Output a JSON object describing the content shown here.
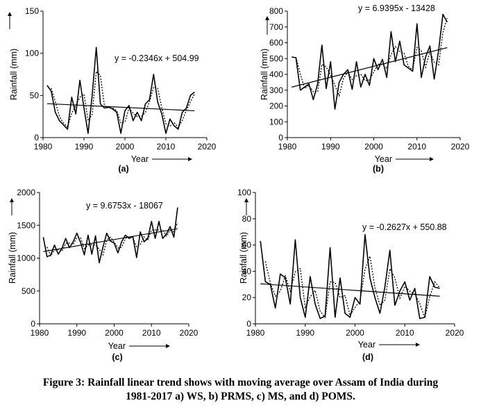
{
  "figure": {
    "caption_line1": "Figure 3: Rainfall linear trend shows with moving average over Assam of India during",
    "caption_line2": "1981-2017 a) WS, b) PRMS, c) MS, and d) POMS."
  },
  "colors": {
    "line": "#000000",
    "background": "#ffffff"
  },
  "chart_data": [
    {
      "type": "line",
      "panel_label": "(a)",
      "equation": "y = -0.2346x + 504.99",
      "xlabel": "Year",
      "ylabel": "Rainfall (mm)",
      "xlim": [
        1980,
        2020
      ],
      "ylim": [
        0,
        150
      ],
      "xticks": [
        1980,
        1990,
        2000,
        2010,
        2020
      ],
      "yticks": [
        0,
        50,
        100,
        150
      ],
      "grid": false,
      "trendline": {
        "slope": -0.2346,
        "intercept": 504.99
      },
      "moving_average": {
        "style": "dotted",
        "period": 2
      },
      "x": [
        1981,
        1982,
        1983,
        1984,
        1985,
        1986,
        1987,
        1988,
        1989,
        1990,
        1991,
        1992,
        1993,
        1994,
        1995,
        1996,
        1997,
        1998,
        1999,
        2000,
        2001,
        2002,
        2003,
        2004,
        2005,
        2006,
        2007,
        2008,
        2009,
        2010,
        2011,
        2012,
        2013,
        2014,
        2015,
        2016,
        2017
      ],
      "values": [
        62,
        55,
        30,
        20,
        15,
        10,
        48,
        28,
        68,
        35,
        5,
        50,
        107,
        40,
        35,
        36,
        34,
        30,
        5,
        32,
        38,
        20,
        30,
        20,
        40,
        45,
        75,
        42,
        28,
        5,
        22,
        14,
        10,
        30,
        35,
        50,
        54
      ]
    },
    {
      "type": "line",
      "panel_label": "(b)",
      "equation": "y = 6.9395x - 13428",
      "xlabel": "Year",
      "ylabel": "Rainfall (mm)",
      "xlim": [
        1980,
        2020
      ],
      "ylim": [
        0,
        800
      ],
      "xticks": [
        1980,
        1990,
        2000,
        2010,
        2020
      ],
      "yticks": [
        0,
        100,
        200,
        300,
        400,
        500,
        600,
        700,
        800
      ],
      "grid": false,
      "trendline": {
        "slope": 6.9395,
        "intercept": -13428
      },
      "moving_average": {
        "style": "dotted",
        "period": 2
      },
      "x": [
        1981,
        1982,
        1983,
        1984,
        1985,
        1986,
        1987,
        1988,
        1989,
        1990,
        1991,
        1992,
        1993,
        1994,
        1995,
        1996,
        1997,
        1998,
        1999,
        2000,
        2001,
        2002,
        2003,
        2004,
        2005,
        2006,
        2007,
        2008,
        2009,
        2010,
        2011,
        2012,
        2013,
        2014,
        2015,
        2016,
        2017
      ],
      "values": [
        510,
        505,
        300,
        320,
        340,
        240,
        340,
        585,
        310,
        480,
        180,
        350,
        400,
        430,
        305,
        480,
        320,
        400,
        330,
        500,
        430,
        495,
        380,
        670,
        480,
        610,
        460,
        440,
        420,
        720,
        380,
        510,
        580,
        370,
        550,
        780,
        730
      ]
    },
    {
      "type": "line",
      "panel_label": "(c)",
      "equation": "y = 9.6753x - 18067",
      "xlabel": "Year",
      "ylabel": "Rainfall (mm)",
      "xlim": [
        1980,
        2020
      ],
      "ylim": [
        0,
        2000
      ],
      "xticks": [
        1980,
        1990,
        2000,
        2010,
        2020
      ],
      "yticks": [
        0,
        500,
        1000,
        1500,
        2000
      ],
      "grid": false,
      "trendline": {
        "slope": 9.6753,
        "intercept": -18067
      },
      "moving_average": {
        "style": "dotted",
        "period": 2
      },
      "x": [
        1981,
        1982,
        1983,
        1984,
        1985,
        1986,
        1987,
        1988,
        1989,
        1990,
        1991,
        1992,
        1993,
        1994,
        1995,
        1996,
        1997,
        1998,
        1999,
        2000,
        2001,
        2002,
        2003,
        2004,
        2005,
        2006,
        2007,
        2008,
        2009,
        2010,
        2011,
        2012,
        2013,
        2014,
        2015,
        2016,
        2017
      ],
      "values": [
        1320,
        1020,
        1050,
        1200,
        1060,
        1150,
        1300,
        1160,
        1250,
        1380,
        1240,
        1050,
        1350,
        1060,
        1340,
        930,
        1170,
        1380,
        1260,
        1230,
        1080,
        1250,
        1350,
        1300,
        1330,
        1010,
        1400,
        1250,
        1300,
        1560,
        1300,
        1560,
        1300,
        1370,
        1480,
        1320,
        1770
      ]
    },
    {
      "type": "line",
      "panel_label": "(d)",
      "equation": "y = -0.2627x + 550.88",
      "xlabel": "Year",
      "ylabel": "Rainfall (mm)",
      "xlim": [
        1980,
        2020
      ],
      "ylim": [
        0,
        100
      ],
      "xticks": [
        1980,
        1990,
        2000,
        2010,
        2020
      ],
      "yticks": [
        0,
        20,
        40,
        60,
        80,
        100
      ],
      "grid": false,
      "trendline": {
        "slope": -0.2627,
        "intercept": 550.88
      },
      "moving_average": {
        "style": "dotted",
        "period": 2
      },
      "x": [
        1981,
        1982,
        1983,
        1984,
        1985,
        1986,
        1987,
        1988,
        1989,
        1990,
        1991,
        1992,
        1993,
        1994,
        1995,
        1996,
        1997,
        1998,
        1999,
        2000,
        2001,
        2002,
        2003,
        2004,
        2005,
        2006,
        2007,
        2008,
        2009,
        2010,
        2011,
        2012,
        2013,
        2014,
        2015,
        2016,
        2017
      ],
      "values": [
        63,
        32,
        30,
        12,
        38,
        35,
        15,
        64,
        20,
        5,
        36,
        15,
        4,
        6,
        58,
        5,
        35,
        8,
        5,
        20,
        15,
        68,
        35,
        20,
        8,
        28,
        56,
        14,
        25,
        32,
        18,
        27,
        4,
        5,
        36,
        28,
        27
      ]
    }
  ]
}
